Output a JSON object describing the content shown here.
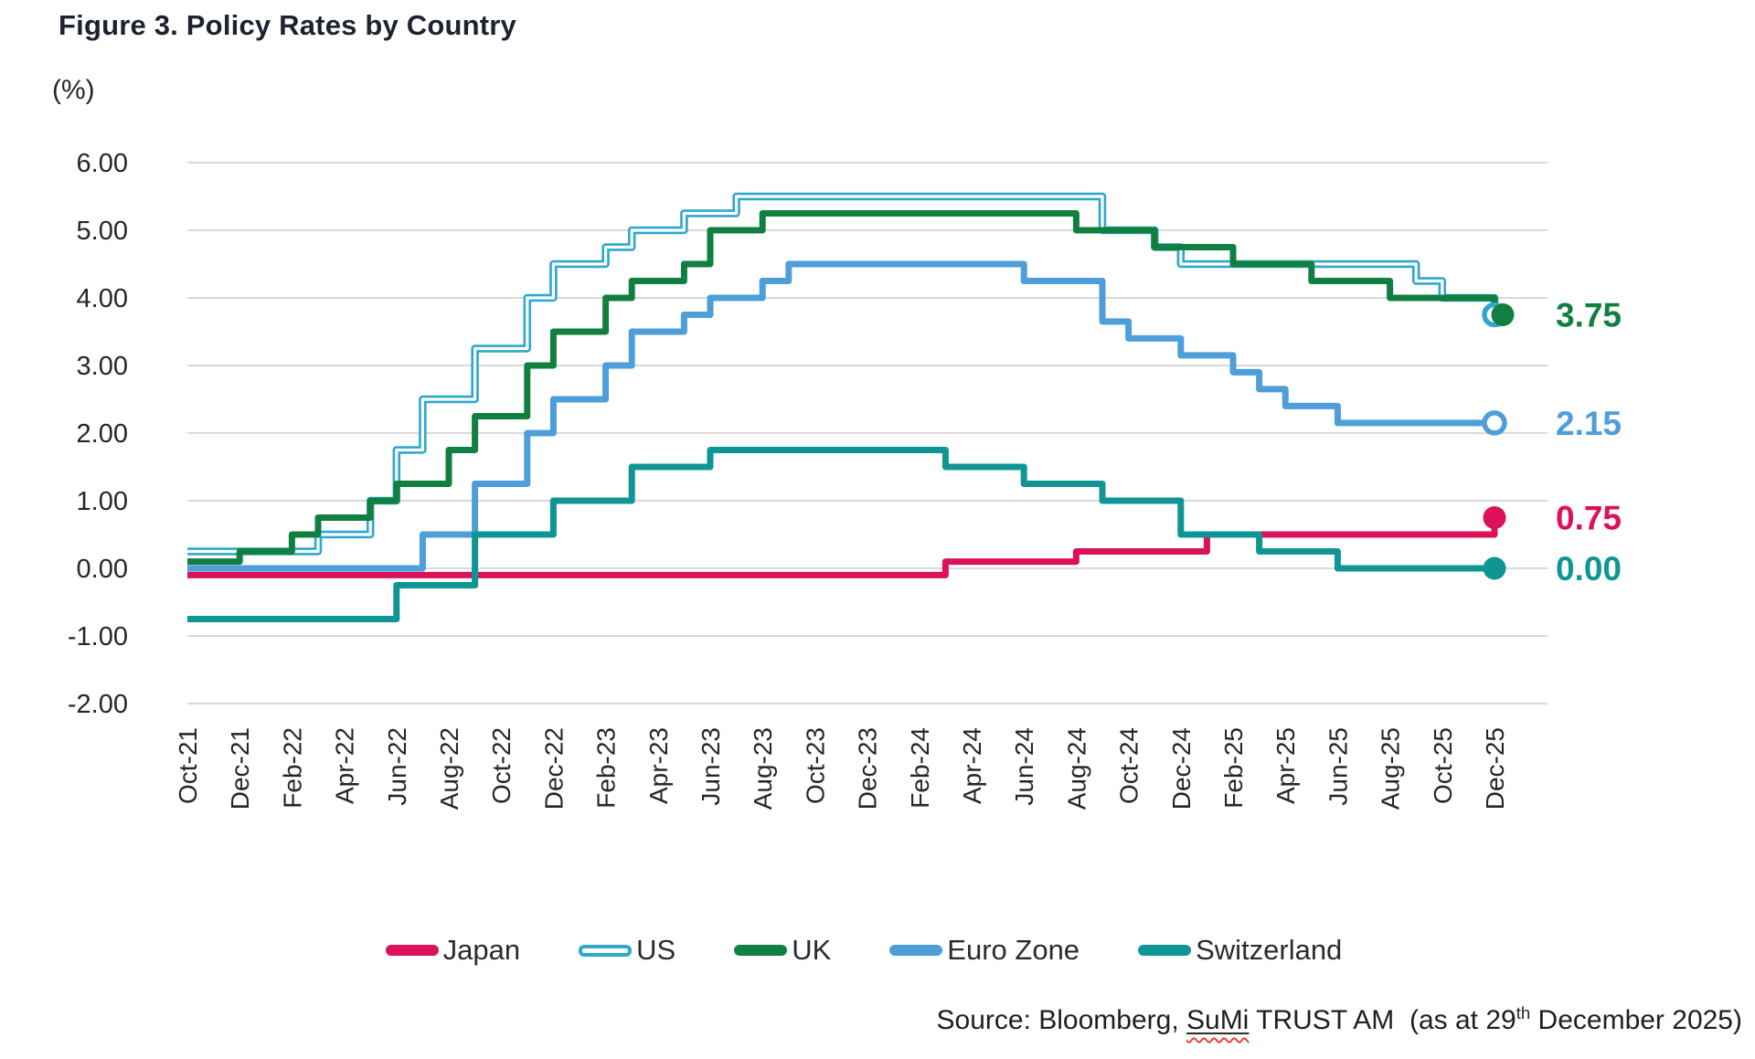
{
  "title": "Figure 3. Policy Rates by Country",
  "y_axis_unit": "(%)",
  "colors": {
    "grid": "#D9D9D9",
    "axis_text": "#262626",
    "title_text": "#1C2230",
    "legend_text": "#2B2B2B",
    "source_text": "#1F1F1F",
    "spellcheck_red": "#E5433A",
    "japan": "#DB115A",
    "us": "#2FA8CC",
    "uk": "#107F3F",
    "eurozone": "#4D9ED9",
    "switzerland": "#0E9594"
  },
  "legend": {
    "items": [
      {
        "name": "japan",
        "label": "Japan",
        "color": "#DB115A",
        "swatch": "solid"
      },
      {
        "name": "us",
        "label": "US",
        "color": "#2FA8CC",
        "swatch": "double"
      },
      {
        "name": "uk",
        "label": "UK",
        "color": "#107F3F",
        "swatch": "solid"
      },
      {
        "name": "eurozone",
        "label": "Euro Zone",
        "color": "#4D9ED9",
        "swatch": "solid"
      },
      {
        "name": "switzerland",
        "label": "Switzerland",
        "color": "#0E9594",
        "swatch": "solid"
      }
    ]
  },
  "source": {
    "prefix": "Source: Bloomberg, ",
    "sumi": "SuMi",
    "middle": " TRUST AM  (as at 29",
    "superscript": "th",
    "suffix": " December 2025)"
  },
  "chart_data": {
    "type": "line",
    "step_style": "step-after",
    "frequency": "monthly",
    "x_start": "Oct-21",
    "x_end": "Dec-25",
    "grid": "horizontal",
    "legend_position": "bottom",
    "ylim": [
      -2,
      6
    ],
    "y_tick_labels": [
      "6.00",
      "5.00",
      "4.00",
      "3.00",
      "2.00",
      "1.00",
      "0.00",
      "-1.00",
      "-2.00"
    ],
    "x_tick_labels": [
      "Oct-21",
      "Dec-21",
      "Feb-22",
      "Apr-22",
      "Jun-22",
      "Aug-22",
      "Oct-22",
      "Dec-22",
      "Feb-23",
      "Apr-23",
      "Jun-23",
      "Aug-23",
      "Oct-23",
      "Dec-23",
      "Feb-24",
      "Apr-24",
      "Jun-24",
      "Aug-24",
      "Oct-24",
      "Dec-24",
      "Feb-25",
      "Apr-25",
      "Jun-25",
      "Aug-25",
      "Oct-25",
      "Dec-25"
    ],
    "series": [
      {
        "name": "Japan",
        "color": "#DB115A",
        "line_style": "solid",
        "marker": "filled-circle",
        "end_label": "0.75",
        "values": [
          -0.1,
          -0.1,
          -0.1,
          -0.1,
          -0.1,
          -0.1,
          -0.1,
          -0.1,
          -0.1,
          -0.1,
          -0.1,
          -0.1,
          -0.1,
          -0.1,
          -0.1,
          -0.1,
          -0.1,
          -0.1,
          -0.1,
          -0.1,
          -0.1,
          -0.1,
          -0.1,
          -0.1,
          -0.1,
          -0.1,
          -0.1,
          -0.1,
          -0.1,
          0.1,
          0.1,
          0.1,
          0.1,
          0.1,
          0.25,
          0.25,
          0.25,
          0.25,
          0.25,
          0.5,
          0.5,
          0.5,
          0.5,
          0.5,
          0.5,
          0.5,
          0.5,
          0.5,
          0.5,
          0.5,
          0.75
        ]
      },
      {
        "name": "US",
        "color": "#2FA8CC",
        "line_style": "double",
        "marker": "open-circle",
        "end_label": null,
        "values": [
          0.25,
          0.25,
          0.25,
          0.25,
          0.25,
          0.5,
          0.5,
          1.0,
          1.75,
          2.5,
          2.5,
          3.25,
          3.25,
          4.0,
          4.5,
          4.5,
          4.75,
          5.0,
          5.0,
          5.25,
          5.25,
          5.5,
          5.5,
          5.5,
          5.5,
          5.5,
          5.5,
          5.5,
          5.5,
          5.5,
          5.5,
          5.5,
          5.5,
          5.5,
          5.5,
          5.0,
          5.0,
          4.75,
          4.5,
          4.5,
          4.5,
          4.5,
          4.5,
          4.5,
          4.5,
          4.5,
          4.5,
          4.25,
          4.0,
          4.0,
          3.75
        ]
      },
      {
        "name": "UK",
        "color": "#107F3F",
        "line_style": "solid",
        "marker": "filled-circle",
        "end_label": "3.75",
        "values": [
          0.1,
          0.1,
          0.25,
          0.25,
          0.5,
          0.75,
          0.75,
          1.0,
          1.25,
          1.25,
          1.75,
          2.25,
          2.25,
          3.0,
          3.5,
          3.5,
          4.0,
          4.25,
          4.25,
          4.5,
          5.0,
          5.0,
          5.25,
          5.25,
          5.25,
          5.25,
          5.25,
          5.25,
          5.25,
          5.25,
          5.25,
          5.25,
          5.25,
          5.25,
          5.0,
          5.0,
          5.0,
          4.75,
          4.75,
          4.75,
          4.5,
          4.5,
          4.5,
          4.25,
          4.25,
          4.25,
          4.0,
          4.0,
          4.0,
          4.0,
          3.75
        ]
      },
      {
        "name": "Euro Zone",
        "color": "#4D9ED9",
        "line_style": "solid",
        "marker": "open-circle",
        "end_label": "2.15",
        "values": [
          0,
          0,
          0,
          0,
          0,
          0,
          0,
          0,
          0,
          0.5,
          0.5,
          1.25,
          1.25,
          2.0,
          2.5,
          2.5,
          3.0,
          3.5,
          3.5,
          3.75,
          4.0,
          4.0,
          4.25,
          4.5,
          4.5,
          4.5,
          4.5,
          4.5,
          4.5,
          4.5,
          4.5,
          4.5,
          4.25,
          4.25,
          4.25,
          3.65,
          3.4,
          3.4,
          3.15,
          3.15,
          2.9,
          2.65,
          2.4,
          2.4,
          2.15,
          2.15,
          2.15,
          2.15,
          2.15,
          2.15,
          2.15
        ]
      },
      {
        "name": "Switzerland",
        "color": "#0E9594",
        "line_style": "solid",
        "marker": "filled-circle",
        "end_label": "0.00",
        "values": [
          -0.75,
          -0.75,
          -0.75,
          -0.75,
          -0.75,
          -0.75,
          -0.75,
          -0.75,
          -0.25,
          -0.25,
          -0.25,
          0.5,
          0.5,
          0.5,
          1.0,
          1.0,
          1.0,
          1.5,
          1.5,
          1.5,
          1.75,
          1.75,
          1.75,
          1.75,
          1.75,
          1.75,
          1.75,
          1.75,
          1.75,
          1.5,
          1.5,
          1.5,
          1.25,
          1.25,
          1.25,
          1.0,
          1.0,
          1.0,
          0.5,
          0.5,
          0.5,
          0.25,
          0.25,
          0.25,
          0,
          0,
          0,
          0,
          0,
          0,
          0
        ]
      }
    ]
  }
}
